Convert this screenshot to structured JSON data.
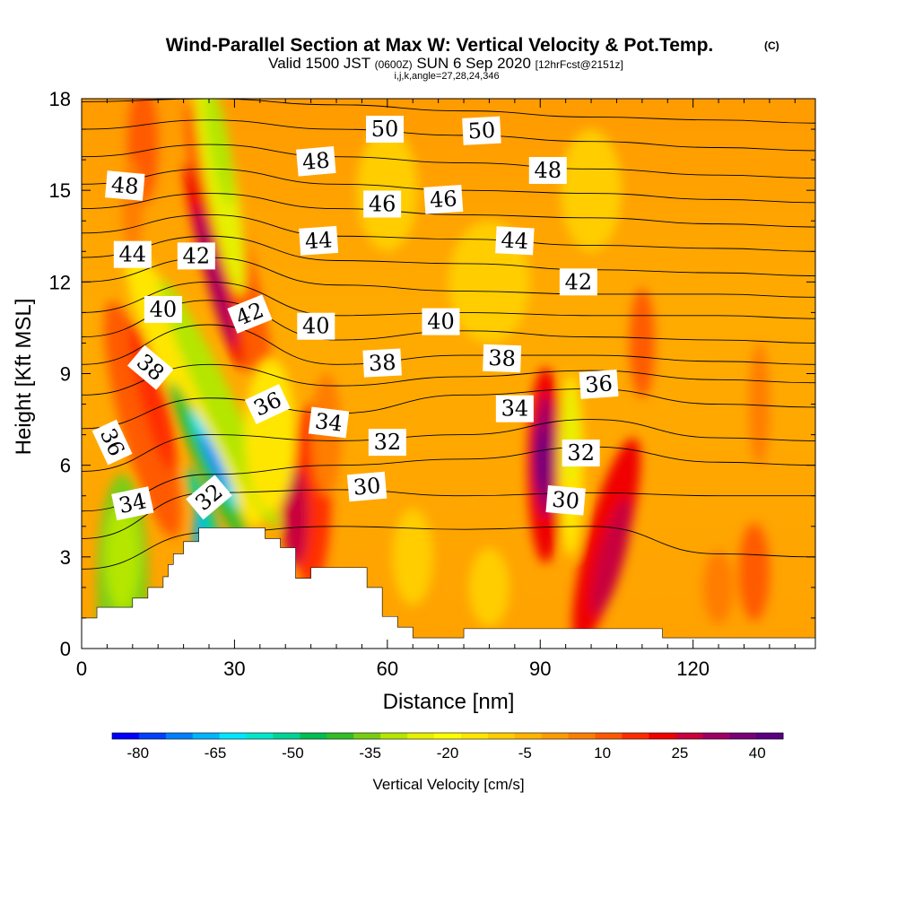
{
  "chart_data": {
    "type": "heatmap",
    "title": "Wind-Parallel Section at Max W: Vertical Velocity & Pot.Temp.",
    "title_mark": "(C)",
    "subtitle_parts": [
      "Valid 1500 JST ",
      "(0600Z)",
      " SUN 6 Sep 2020 ",
      "[12hrFcst@2151z]"
    ],
    "subtitle2": "i,j,k,angle=27,28,24,346",
    "xlabel": "Distance [nm]",
    "ylabel": "Height [Kft MSL]",
    "xlim": [
      0,
      144
    ],
    "ylim": [
      0,
      18
    ],
    "x_ticks": [
      0,
      30,
      60,
      90,
      120
    ],
    "y_ticks": [
      0,
      3,
      6,
      9,
      12,
      15,
      18
    ],
    "colorbar": {
      "label": "Vertical Velocity [cm/s]",
      "tick_values": [
        -80,
        -65,
        -50,
        -35,
        -20,
        -5,
        10,
        25,
        40
      ],
      "tick_labels": [
        "-80",
        "-65",
        "-50",
        "-35",
        "-20",
        "-5",
        "10",
        "25",
        "40"
      ],
      "colors": [
        "#0000ff",
        "#0040ff",
        "#0080ff",
        "#00b4ff",
        "#00e6ff",
        "#00e6c8",
        "#00d296",
        "#00be50",
        "#32be28",
        "#78cd14",
        "#b4e600",
        "#e6f000",
        "#ffff00",
        "#ffe600",
        "#ffcd00",
        "#ffb400",
        "#ff9b00",
        "#ff7d00",
        "#ff5a00",
        "#ff2d00",
        "#f00000",
        "#c8003c",
        "#a00064",
        "#780078",
        "#5a0082"
      ],
      "range": [
        -85,
        45
      ]
    },
    "terrain_kft": [
      [
        0,
        1.0
      ],
      [
        3,
        1.0
      ],
      [
        3,
        1.35
      ],
      [
        10,
        1.35
      ],
      [
        10,
        1.65
      ],
      [
        13,
        1.65
      ],
      [
        13,
        2.0
      ],
      [
        16,
        2.0
      ],
      [
        16,
        2.35
      ],
      [
        17,
        2.35
      ],
      [
        17,
        2.75
      ],
      [
        18,
        2.75
      ],
      [
        18,
        3.1
      ],
      [
        20,
        3.1
      ],
      [
        20,
        3.5
      ],
      [
        23,
        3.5
      ],
      [
        23,
        3.95
      ],
      [
        36,
        3.95
      ],
      [
        36,
        3.6
      ],
      [
        39,
        3.6
      ],
      [
        39,
        3.3
      ],
      [
        42,
        3.3
      ],
      [
        42,
        2.3
      ],
      [
        45,
        2.3
      ],
      [
        45,
        2.65
      ],
      [
        56,
        2.65
      ],
      [
        56,
        2.0
      ],
      [
        59,
        2.0
      ],
      [
        59,
        1.05
      ],
      [
        62,
        1.05
      ],
      [
        62,
        0.7
      ],
      [
        65,
        0.7
      ],
      [
        65,
        0.35
      ],
      [
        75,
        0.35
      ],
      [
        75,
        0.65
      ],
      [
        114,
        0.65
      ],
      [
        114,
        0.35
      ],
      [
        144,
        0.35
      ]
    ],
    "contour_labels": [
      {
        "text": "50",
        "x": 59.5,
        "y": 17.0,
        "angle": 0
      },
      {
        "text": "50",
        "x": 78.5,
        "y": 16.95,
        "angle": -3
      },
      {
        "text": "48",
        "x": 8.5,
        "y": 15.15,
        "angle": 5
      },
      {
        "text": "48",
        "x": 46,
        "y": 15.95,
        "angle": -5
      },
      {
        "text": "48",
        "x": 91.5,
        "y": 15.65,
        "angle": 0
      },
      {
        "text": "46",
        "x": 59,
        "y": 14.55,
        "angle": 0
      },
      {
        "text": "46",
        "x": 71,
        "y": 14.7,
        "angle": -4
      },
      {
        "text": "44",
        "x": 10,
        "y": 12.9,
        "angle": 0
      },
      {
        "text": "44",
        "x": 46.5,
        "y": 13.35,
        "angle": -4
      },
      {
        "text": "44",
        "x": 85,
        "y": 13.35,
        "angle": 3
      },
      {
        "text": "42",
        "x": 22.5,
        "y": 12.85,
        "angle": 0
      },
      {
        "text": "42",
        "x": 33,
        "y": 10.95,
        "angle": -22
      },
      {
        "text": "42",
        "x": 97.5,
        "y": 12.0,
        "angle": 0
      },
      {
        "text": "40",
        "x": 16,
        "y": 11.1,
        "angle": 0
      },
      {
        "text": "40",
        "x": 46,
        "y": 10.55,
        "angle": 0
      },
      {
        "text": "40",
        "x": 70.5,
        "y": 10.7,
        "angle": 0
      },
      {
        "text": "38",
        "x": 13.5,
        "y": 9.2,
        "angle": 40
      },
      {
        "text": "38",
        "x": 59,
        "y": 9.35,
        "angle": -3
      },
      {
        "text": "38",
        "x": 82.5,
        "y": 9.5,
        "angle": 2
      },
      {
        "text": "36",
        "x": 6,
        "y": 6.75,
        "angle": 65
      },
      {
        "text": "36",
        "x": 36.5,
        "y": 8.0,
        "angle": -25
      },
      {
        "text": "36",
        "x": 101.5,
        "y": 8.65,
        "angle": -4
      },
      {
        "text": "34",
        "x": 10,
        "y": 4.75,
        "angle": -12
      },
      {
        "text": "34",
        "x": 48.5,
        "y": 7.4,
        "angle": 7
      },
      {
        "text": "34",
        "x": 85,
        "y": 7.85,
        "angle": 0
      },
      {
        "text": "32",
        "x": 25,
        "y": 4.95,
        "angle": -40
      },
      {
        "text": "32",
        "x": 60,
        "y": 6.75,
        "angle": 0
      },
      {
        "text": "32",
        "x": 98,
        "y": 6.4,
        "angle": 0
      },
      {
        "text": "30",
        "x": 56,
        "y": 5.3,
        "angle": -5
      },
      {
        "text": "30",
        "x": 95,
        "y": 4.85,
        "angle": 5
      }
    ]
  }
}
